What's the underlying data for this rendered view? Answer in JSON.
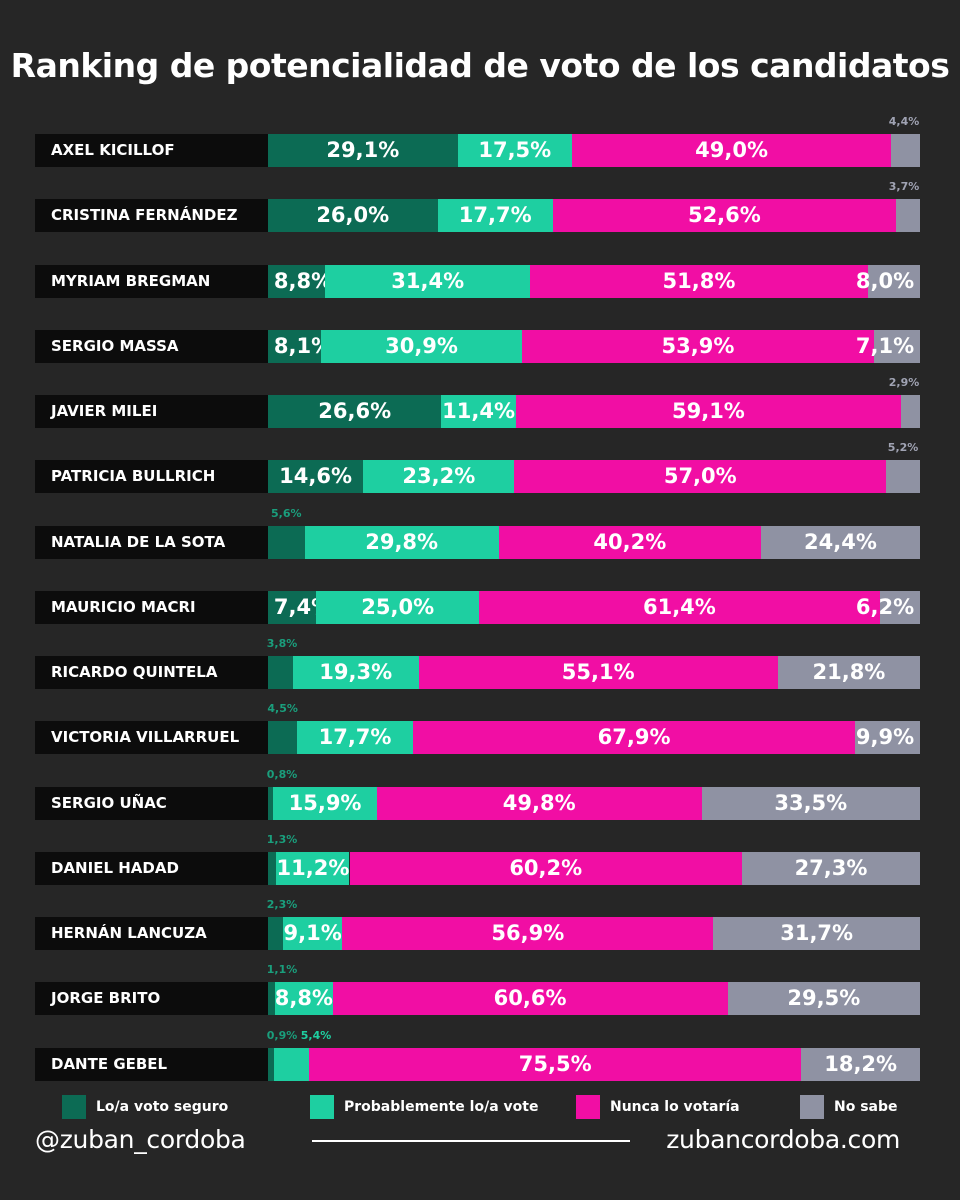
{
  "colors": {
    "background": "#262626",
    "voto_seguro": "#0c6b54",
    "probablemente": "#1ecfa1",
    "nunca": "#f10ea4",
    "no_sabe": "#8f92a3"
  },
  "chart_data": {
    "type": "bar",
    "orientation": "horizontal",
    "stacked": true,
    "title": "Ranking de potencialidad de voto de los candidatos",
    "xlim": [
      0,
      100
    ],
    "legend_position": "bottom",
    "categories": [
      "AXEL KICILLOF",
      "CRISTINA FERNÁNDEZ",
      "MYRIAM BREGMAN",
      "SERGIO MASSA",
      "JAVIER MILEI",
      "PATRICIA BULLRICH",
      "NATALIA DE LA SOTA",
      "MAURICIO MACRI",
      "RICARDO QUINTELA",
      "VICTORIA VILLARRUEL",
      "SERGIO UÑAC",
      "DANIEL HADAD",
      "HERNÁN LANCUZA",
      "JORGE BRITO",
      "DANTE GEBEL"
    ],
    "series": [
      {
        "name": "Lo/a voto seguro",
        "color": "#0c6b54",
        "values": [
          29.1,
          26.0,
          8.8,
          8.1,
          26.6,
          14.6,
          5.6,
          7.4,
          3.8,
          4.5,
          0.8,
          1.3,
          2.3,
          1.1,
          0.9
        ],
        "labels": [
          "29,1%",
          "26,0%",
          "8,8%",
          "8,1%",
          "26,6%",
          "14,6%",
          "5,6%",
          "7,4%",
          "3,8%",
          "4,5%",
          "0,8%",
          "1,3%",
          "2,3%",
          "1,1%",
          "0,9%"
        ]
      },
      {
        "name": "Probablemente lo/a vote",
        "color": "#1ecfa1",
        "values": [
          17.5,
          17.7,
          31.4,
          30.9,
          11.4,
          23.2,
          29.8,
          25.0,
          19.3,
          17.7,
          15.9,
          11.2,
          9.1,
          8.8,
          5.4
        ],
        "labels": [
          "17,5%",
          "17,7%",
          "31,4%",
          "30,9%",
          "11,4%",
          "23,2%",
          "29,8%",
          "25,0%",
          "19,3%",
          "17,7%",
          "15,9%",
          "11,2%",
          "9,1%",
          "8,8%",
          "5,4%"
        ]
      },
      {
        "name": "Nunca lo votaría",
        "color": "#f10ea4",
        "values": [
          49.0,
          52.6,
          51.8,
          53.9,
          59.1,
          57.0,
          40.2,
          61.4,
          55.1,
          67.9,
          49.8,
          60.2,
          56.9,
          60.6,
          75.5
        ],
        "labels": [
          "49,0%",
          "52,6%",
          "51,8%",
          "53,9%",
          "59,1%",
          "57,0%",
          "40,2%",
          "61,4%",
          "55,1%",
          "67,9%",
          "49,8%",
          "60,2%",
          "56,9%",
          "60,6%",
          "75,5%"
        ]
      },
      {
        "name": "No sabe",
        "color": "#8f92a3",
        "values": [
          4.4,
          3.7,
          8.0,
          7.1,
          2.9,
          5.2,
          24.4,
          6.2,
          21.8,
          9.9,
          33.5,
          27.3,
          31.7,
          29.5,
          18.2
        ],
        "labels": [
          "4,4%",
          "3,7%",
          "8,0%",
          "7,1%",
          "2,9%",
          "5,2%",
          "24,4%",
          "6,2%",
          "21,8%",
          "9,9%",
          "33,5%",
          "27,3%",
          "31,7%",
          "29,5%",
          "18,2%"
        ]
      }
    ]
  },
  "footer": {
    "handle": "@zuban_cordoba",
    "website": "zubancordoba.com"
  }
}
